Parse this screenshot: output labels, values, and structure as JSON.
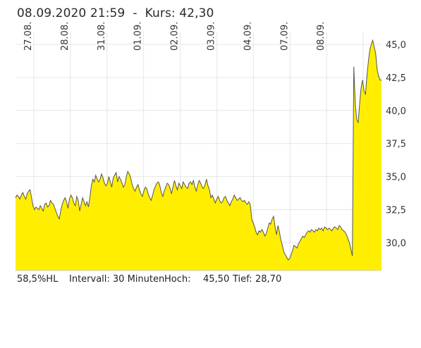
{
  "header": {
    "timestamp": "08.09.2020 21:59",
    "separator": "-",
    "price_label": "Kurs: 42,30"
  },
  "footer": {
    "hl_ratio": "58,5%HL",
    "interval": "Intervall: 30 Minuten",
    "high_label": "Hoch:",
    "high_value": "45,50",
    "low_label": "Tief:",
    "low_value": "28,70"
  },
  "colors": {
    "fill": "#ffee00",
    "line": "#555555",
    "grid": "#e6e6e6"
  },
  "chart_data": {
    "type": "area",
    "title": "",
    "xlabel": "",
    "ylabel": "",
    "ylim": [
      27.9,
      45.9
    ],
    "grid": true,
    "x_tick_labels": [
      "27.08.",
      "28.08.",
      "31.08.",
      "01.09.",
      "02.09.",
      "03.09.",
      "04.09.",
      "07.09.",
      "08.09."
    ],
    "y_tick_values": [
      30.0,
      32.5,
      35.0,
      37.5,
      40.0,
      42.5,
      45.0
    ],
    "y_tick_labels": [
      "30,0",
      "32,5",
      "35,0",
      "37,5",
      "40,0",
      "42,5",
      "45,0"
    ],
    "y_axis_position": "right",
    "x_label_orientation": "vertical",
    "day_boundaries": [
      6,
      18,
      30,
      42,
      54,
      66,
      78,
      90,
      102,
      114
    ],
    "series": [
      {
        "values": [
          33.4,
          33.6,
          33.5,
          33.3,
          33.6,
          33.8,
          33.5,
          33.3,
          33.7,
          33.9,
          34.0,
          33.4,
          32.8,
          32.5,
          32.7,
          32.6,
          32.5,
          32.8,
          32.6,
          32.4,
          32.9,
          33.0,
          32.7,
          32.8,
          33.2,
          33.0,
          32.9,
          32.6,
          32.3,
          32.0,
          31.8,
          32.4,
          32.9,
          33.2,
          33.4,
          33.1,
          32.6,
          33.3,
          33.6,
          33.4,
          33.0,
          32.8,
          33.5,
          33.2,
          32.4,
          32.9,
          33.4,
          33.1,
          32.8,
          33.1,
          32.7,
          33.4,
          34.3,
          34.8,
          34.6,
          35.1,
          34.8,
          34.6,
          34.8,
          35.2,
          34.9,
          34.5,
          34.3,
          34.5,
          35.0,
          34.6,
          34.2,
          34.9,
          35.1,
          35.3,
          34.6,
          35.0,
          34.8,
          34.5,
          34.2,
          34.4,
          35.0,
          35.4,
          35.2,
          34.9,
          34.4,
          34.1,
          33.9,
          34.2,
          34.4,
          34.0,
          33.7,
          33.5,
          33.9,
          34.2,
          34.1,
          33.7,
          33.4,
          33.2,
          33.6,
          34.0,
          34.3,
          34.5,
          34.6,
          34.3,
          33.8,
          33.5,
          33.9,
          34.2,
          34.5,
          34.4,
          34.1,
          33.7,
          34.2,
          34.7,
          34.3,
          34.0,
          34.5,
          34.3,
          34.1,
          34.6,
          34.4,
          34.2,
          34.1,
          34.5,
          34.6,
          34.4,
          34.7,
          34.2,
          33.9,
          34.4,
          34.7,
          34.5,
          34.2,
          34.1,
          34.4,
          34.8,
          34.3,
          34.0,
          33.4,
          33.6,
          33.3,
          33.0,
          33.3,
          33.5,
          33.2,
          33.0,
          33.1,
          33.4,
          33.5,
          33.2,
          33.0,
          32.8,
          33.1,
          33.3,
          33.6,
          33.4,
          33.2,
          33.3,
          33.4,
          33.2,
          33.1,
          33.2,
          33.0,
          32.9,
          33.1,
          32.9,
          31.8,
          31.5,
          31.2,
          30.8,
          30.6,
          30.9,
          30.8,
          31.0,
          30.8,
          30.5,
          30.7,
          31.1,
          31.5,
          31.4,
          31.8,
          32.0,
          31.2,
          30.6,
          31.3,
          30.8,
          30.2,
          29.8,
          29.3,
          29.1,
          28.9,
          28.7,
          28.8,
          29.1,
          29.4,
          29.8,
          29.7,
          29.6,
          29.9,
          30.1,
          30.3,
          30.5,
          30.4,
          30.6,
          30.8,
          30.9,
          30.8,
          31.0,
          30.9,
          30.8,
          31.0,
          30.9,
          31.1,
          31.0,
          31.1,
          30.9,
          31.2,
          31.1,
          31.0,
          31.1,
          31.0,
          30.9,
          31.1,
          31.2,
          31.1,
          31.0,
          31.3,
          31.2,
          31.0,
          30.9,
          30.8,
          30.6,
          30.3,
          30.0,
          29.5,
          29.0,
          43.3,
          40.5,
          39.3,
          39.1,
          40.5,
          41.7,
          42.3,
          41.5,
          41.2,
          42.6,
          43.7,
          44.6,
          45.0,
          45.3,
          44.8,
          44.3,
          43.1,
          42.6,
          42.3,
          42.3
        ]
      }
    ]
  }
}
